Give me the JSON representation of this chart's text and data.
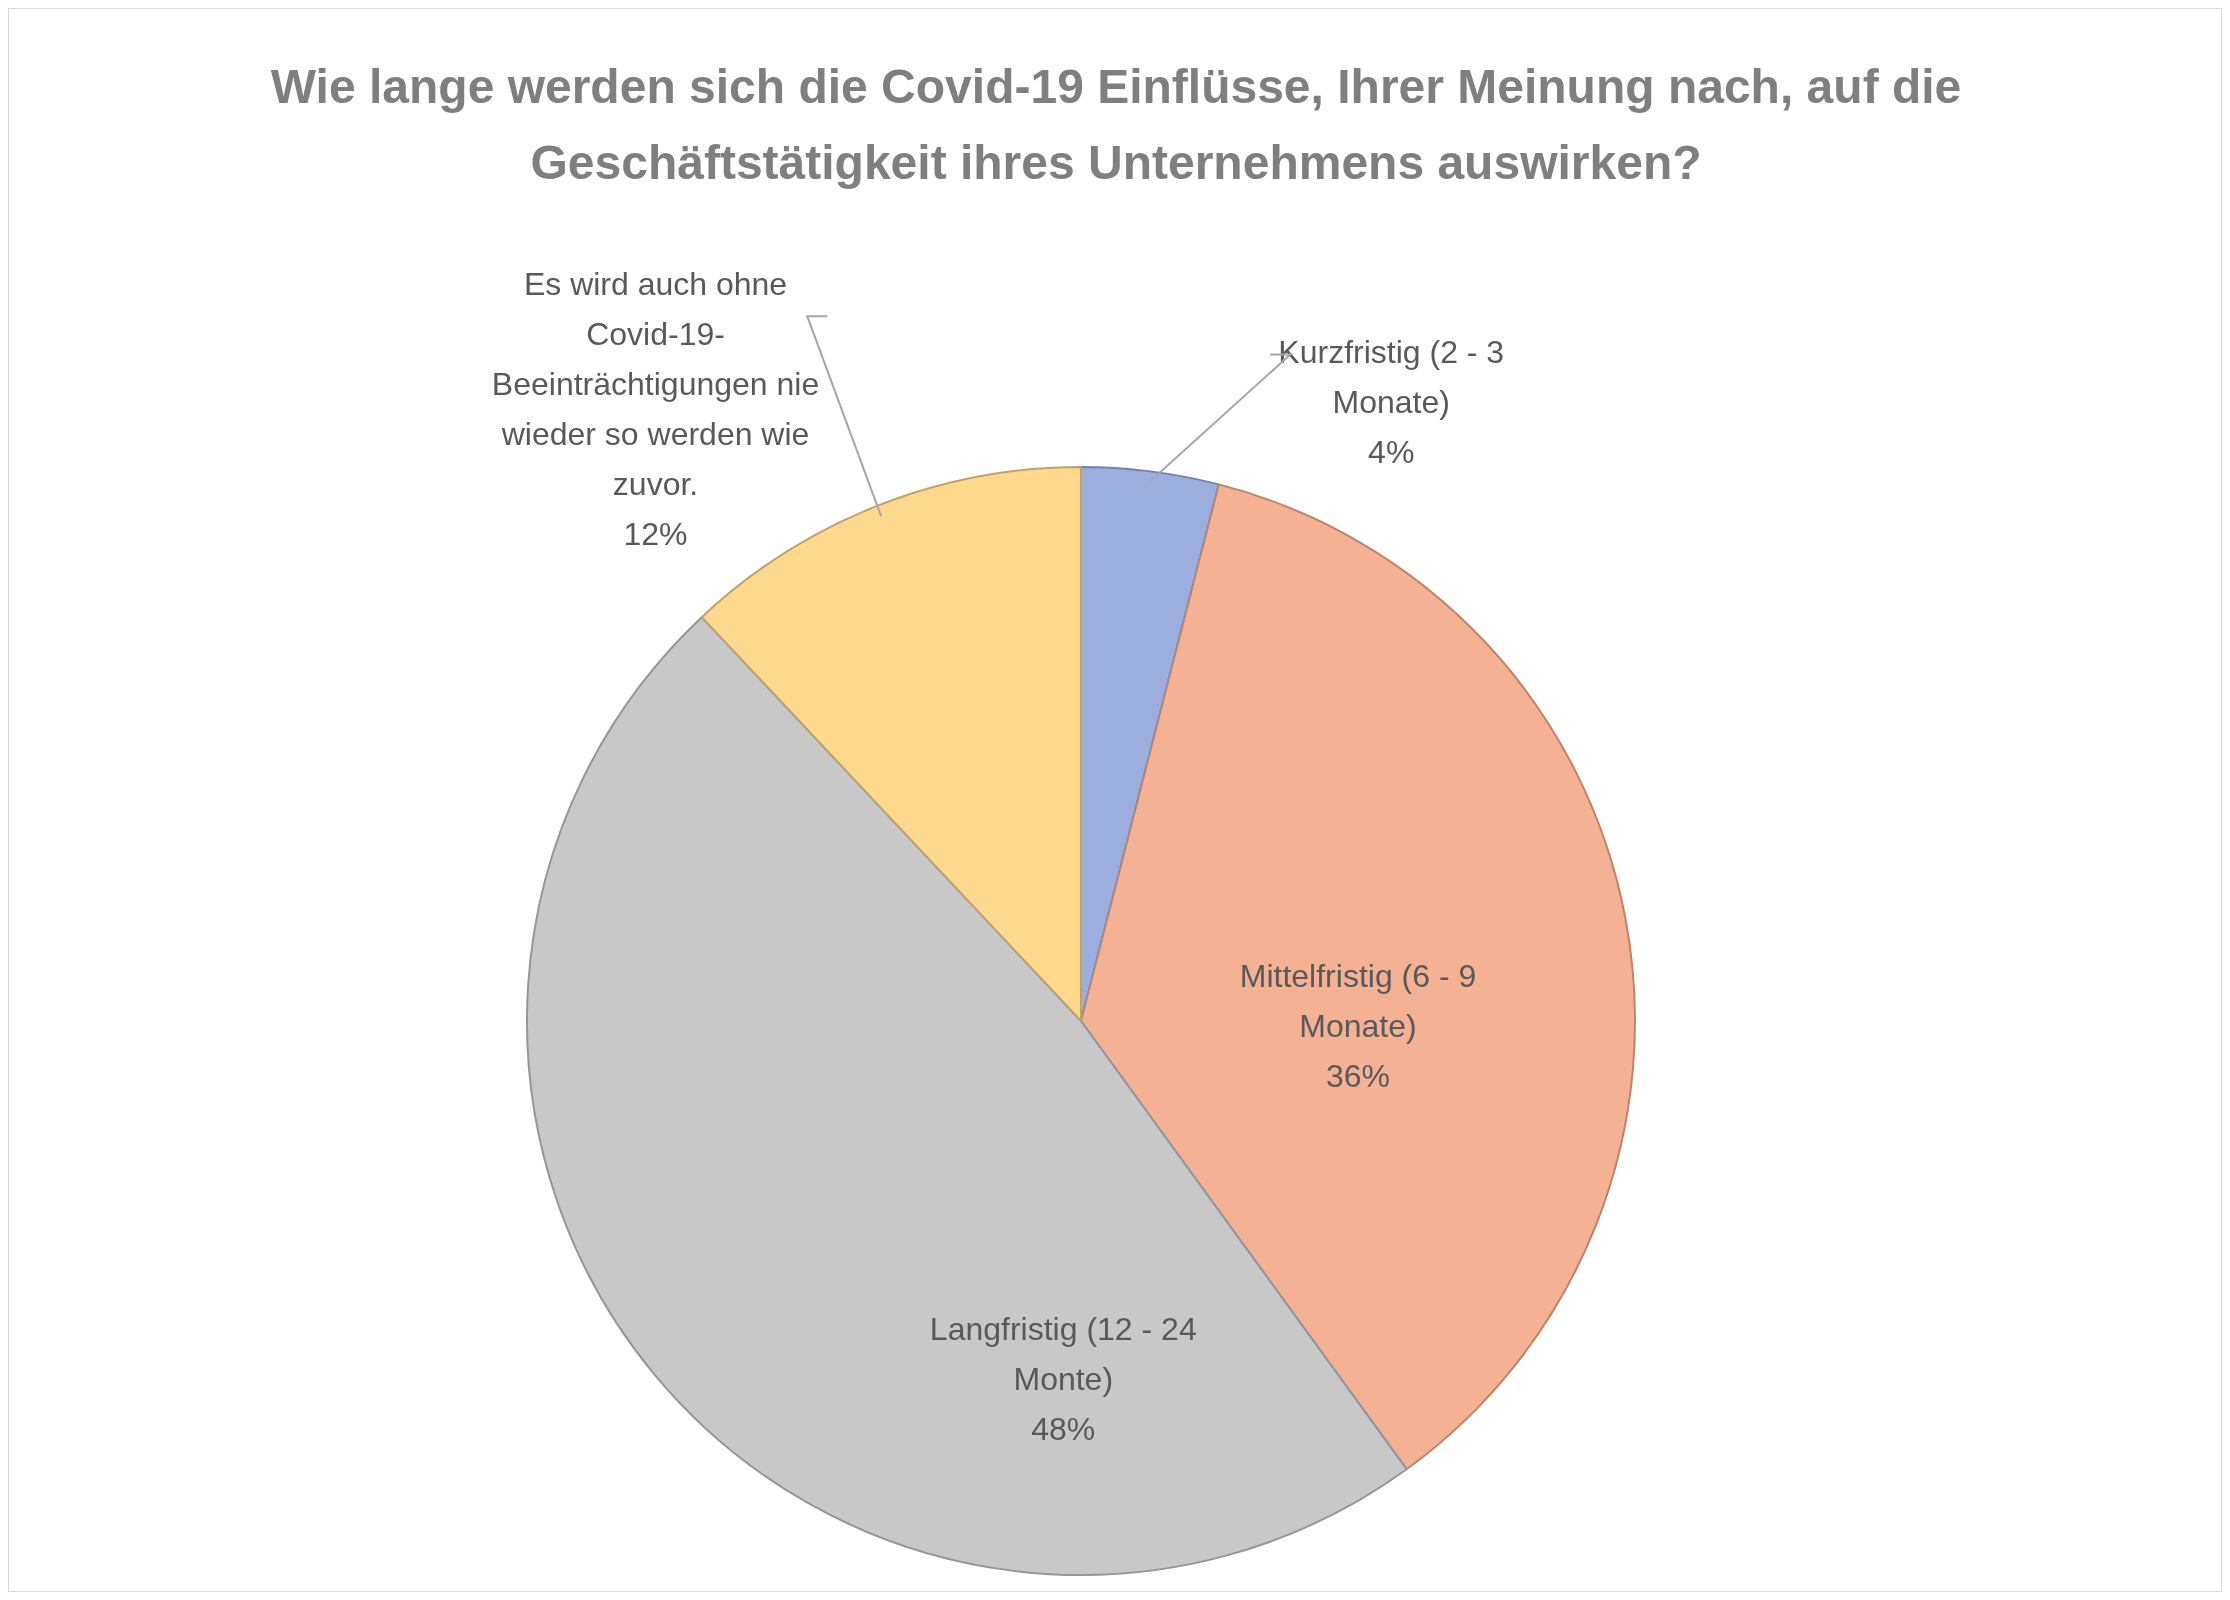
{
  "chart_data": {
    "type": "pie",
    "title": "Wie lange werden sich die Covid-19 Einflüsse, Ihrer Meinung nach, auf die Geschäftstätigkeit ihres Unternehmens auswirken?",
    "categories": [
      "Kurzfristig (2 - 3 Monate)",
      "Mittelfristig (6 - 9 Monate)",
      "Langfristig (12 - 24 Monte)",
      "Es wird auch ohne Covid-19-Beeinträchtigungen nie wieder so werden wie zuvor."
    ],
    "values": [
      4,
      36,
      48,
      12
    ],
    "value_labels": [
      "4%",
      "36%",
      "48%",
      "12%"
    ],
    "colors": [
      "#9caedd",
      "#f5b194",
      "#c8c8c8",
      "#fed88c"
    ]
  }
}
